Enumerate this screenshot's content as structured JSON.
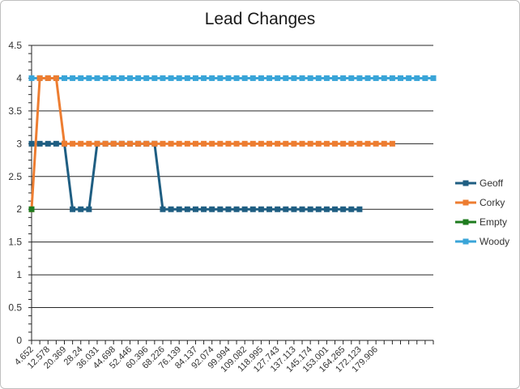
{
  "chart_data": {
    "type": "line",
    "title": "Lead Changes",
    "xlabel": "",
    "ylabel": "",
    "ylim": [
      0,
      4.5
    ],
    "yticks": [
      "0",
      "0.5",
      "1",
      "1.5",
      "2",
      "2.5",
      "3",
      "3.5",
      "4",
      "4.5"
    ],
    "grid": true,
    "legend_position": "right",
    "x_tick_labels": [
      "4.652",
      "12.578",
      "20.369",
      "28.24",
      "36.031",
      "44.698",
      "52.446",
      "60.396",
      "68.226",
      "76.139",
      "84.137",
      "92.074",
      "99.994",
      "109.082",
      "118.995",
      "127.743",
      "137.113",
      "145.174",
      "153.001",
      "164.265",
      "172.123",
      "179.906"
    ],
    "x_tick_every": 2,
    "point_count": 50,
    "series": [
      {
        "name": "Geoff",
        "color": "#1f5e82",
        "values": [
          3,
          3,
          3,
          3,
          3,
          2,
          2,
          2,
          3,
          3,
          3,
          3,
          3,
          3,
          3,
          3,
          2,
          2,
          2,
          2,
          2,
          2,
          2,
          2,
          2,
          2,
          2,
          2,
          2,
          2,
          2,
          2,
          2,
          2,
          2,
          2,
          2,
          2,
          2,
          2,
          2
        ]
      },
      {
        "name": "Corky",
        "color": "#ed7d31",
        "values": [
          2,
          4,
          4,
          4,
          3,
          3,
          3,
          3,
          3,
          3,
          3,
          3,
          3,
          3,
          3,
          3,
          3,
          3,
          3,
          3,
          3,
          3,
          3,
          3,
          3,
          3,
          3,
          3,
          3,
          3,
          3,
          3,
          3,
          3,
          3,
          3,
          3,
          3,
          3,
          3,
          3,
          3,
          3,
          3,
          3
        ]
      },
      {
        "name": "Empty",
        "color": "#1e7b1e",
        "values": [
          2
        ]
      },
      {
        "name": "Woody",
        "color": "#3aa5d8",
        "values": [
          4,
          4,
          4,
          4,
          4,
          4,
          4,
          4,
          4,
          4,
          4,
          4,
          4,
          4,
          4,
          4,
          4,
          4,
          4,
          4,
          4,
          4,
          4,
          4,
          4,
          4,
          4,
          4,
          4,
          4,
          4,
          4,
          4,
          4,
          4,
          4,
          4,
          4,
          4,
          4,
          4,
          4,
          4,
          4,
          4,
          4,
          4,
          4,
          4,
          4
        ]
      }
    ]
  }
}
